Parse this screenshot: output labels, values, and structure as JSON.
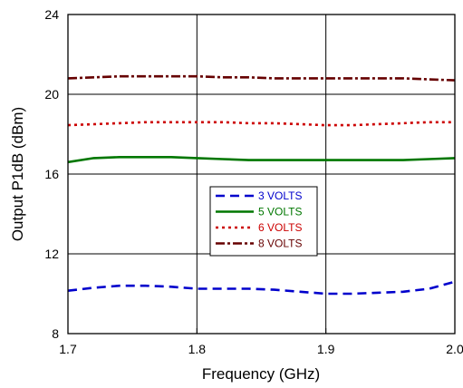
{
  "chart_data": {
    "type": "line",
    "xlabel": "Frequency (GHz)",
    "ylabel": "Output P1dB (dBm)",
    "xlim": [
      1.7,
      2.0
    ],
    "ylim": [
      8,
      24
    ],
    "x_ticks": [
      "1.7",
      "1.8",
      "1.9",
      "2.0"
    ],
    "y_ticks": [
      "8",
      "12",
      "16",
      "20",
      "24"
    ],
    "grid": true,
    "legend_position": "center",
    "series": [
      {
        "name": "3 VOLTS",
        "color": "#0000cc",
        "dash": "dashed",
        "x": [
          1.7,
          1.72,
          1.74,
          1.76,
          1.78,
          1.8,
          1.82,
          1.84,
          1.86,
          1.88,
          1.9,
          1.92,
          1.94,
          1.96,
          1.98,
          2.0
        ],
        "y": [
          10.15,
          10.3,
          10.4,
          10.4,
          10.35,
          10.25,
          10.25,
          10.25,
          10.2,
          10.1,
          10.0,
          10.0,
          10.05,
          10.1,
          10.25,
          10.6
        ]
      },
      {
        "name": "5 VOLTS",
        "color": "#007700",
        "dash": "solid",
        "x": [
          1.7,
          1.72,
          1.74,
          1.76,
          1.78,
          1.8,
          1.82,
          1.84,
          1.86,
          1.88,
          1.9,
          1.92,
          1.94,
          1.96,
          1.98,
          2.0
        ],
        "y": [
          16.6,
          16.8,
          16.85,
          16.85,
          16.85,
          16.8,
          16.75,
          16.7,
          16.7,
          16.7,
          16.7,
          16.7,
          16.7,
          16.7,
          16.75,
          16.8
        ]
      },
      {
        "name": "6 VOLTS",
        "color": "#cc0000",
        "dash": "dotted",
        "x": [
          1.7,
          1.72,
          1.74,
          1.76,
          1.78,
          1.8,
          1.82,
          1.84,
          1.86,
          1.88,
          1.9,
          1.92,
          1.94,
          1.96,
          1.98,
          2.0
        ],
        "y": [
          18.45,
          18.5,
          18.55,
          18.6,
          18.6,
          18.6,
          18.6,
          18.55,
          18.55,
          18.5,
          18.45,
          18.45,
          18.5,
          18.55,
          18.6,
          18.6
        ]
      },
      {
        "name": "8 VOLTS",
        "color": "#660000",
        "dash": "dashdot",
        "x": [
          1.7,
          1.72,
          1.74,
          1.76,
          1.78,
          1.8,
          1.82,
          1.84,
          1.86,
          1.88,
          1.9,
          1.92,
          1.94,
          1.96,
          1.98,
          2.0
        ],
        "y": [
          20.8,
          20.85,
          20.9,
          20.9,
          20.9,
          20.9,
          20.85,
          20.85,
          20.8,
          20.8,
          20.8,
          20.8,
          20.8,
          20.8,
          20.75,
          20.7
        ]
      }
    ]
  }
}
